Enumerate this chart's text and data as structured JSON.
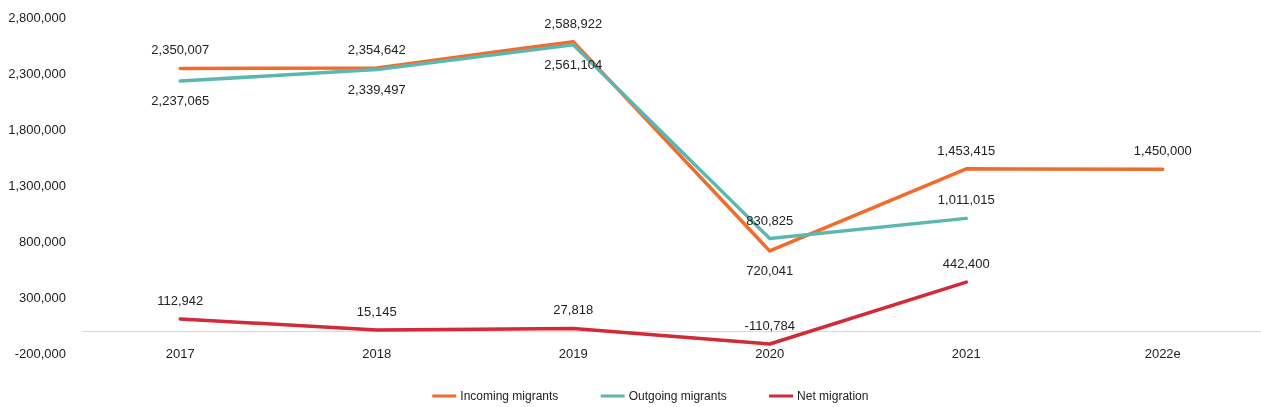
{
  "chart_data": {
    "type": "line",
    "categories": [
      "2017",
      "2018",
      "2019",
      "2020",
      "2021",
      "2022e"
    ],
    "series": [
      {
        "name": "Incoming migrants",
        "color": "#f26b2b",
        "values": [
          2350007,
          2354642,
          2588922,
          720041,
          1453415,
          1450000
        ],
        "value_labels": [
          "2,350,007",
          "2,354,642",
          "2,588,922",
          "720,041",
          "1,453,415",
          "1,450,000"
        ]
      },
      {
        "name": "Outgoing migrants",
        "color": "#5bb8b0",
        "values": [
          2237065,
          2339497,
          2561104,
          830825,
          1011015,
          null
        ],
        "value_labels": [
          "2,237,065",
          "2,339,497",
          "2,561,104",
          "830,825",
          "1,011,015",
          null
        ]
      },
      {
        "name": "Net migration",
        "color": "#d12a38",
        "values": [
          112942,
          15145,
          27818,
          -110784,
          442400,
          null
        ],
        "value_labels": [
          "112,942",
          "15,145",
          "27,818",
          "-110,784",
          "442,400",
          null
        ]
      }
    ],
    "ylim": [
      -200000,
      2800000
    ],
    "yticks": [
      {
        "value": -200000,
        "label": "-200,000"
      },
      {
        "value": 300000,
        "label": "300,000"
      },
      {
        "value": 800000,
        "label": "800,000"
      },
      {
        "value": 1300000,
        "label": "1,300,000"
      },
      {
        "value": 1800000,
        "label": "1,800,000"
      },
      {
        "value": 2300000,
        "label": "2,300,000"
      },
      {
        "value": 2800000,
        "label": "2,800,000"
      }
    ],
    "grid": false,
    "legend": "bottom",
    "marker": "none",
    "line_style": "solid"
  }
}
